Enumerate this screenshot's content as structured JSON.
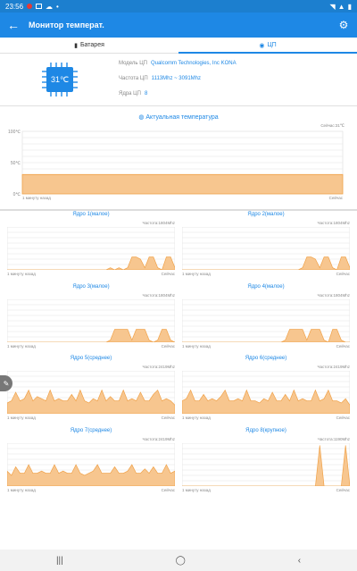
{
  "status_bar": {
    "time": "23:56"
  },
  "app_bar": {
    "title": "Монитор температ."
  },
  "tabs": [
    {
      "label": "Батарея",
      "icon": "battery-icon"
    },
    {
      "label": "ЦП",
      "icon": "cpu-icon"
    }
  ],
  "cpu": {
    "chip_temp": "31℃",
    "model_label": "Модель ЦП",
    "model_value": "Qualcomm Technologies, Inc KONA",
    "freq_label": "Частота ЦП",
    "freq_value": "1113Mhz ~ 3091Mhz",
    "cores_label": "Ядра ЦП",
    "cores_value": "8"
  },
  "temp_chart": {
    "title": "Актуальная температура",
    "now": "Сейчас:31℃",
    "start_label": "1 минуту назад",
    "end_label": "Сейчас"
  },
  "cores": [
    {
      "title": "Ядро 1(малое)",
      "freq": "Частота:1804Mhz"
    },
    {
      "title": "Ядро 2(малое)",
      "freq": "Частота:1804Mhz"
    },
    {
      "title": "Ядро 3(малое)",
      "freq": "Частота:1804Mhz"
    },
    {
      "title": "Ядро 4(малое)",
      "freq": "Частота:1804Mhz"
    },
    {
      "title": "Ядро 5(среднее)",
      "freq": "Частота:2419Mhz"
    },
    {
      "title": "Ядро 6(среднее)",
      "freq": "Частота:2419Mhz"
    },
    {
      "title": "Ядро 7(среднее)",
      "freq": "Частота:2419Mhz"
    },
    {
      "title": "Ядро 8(крупное)",
      "freq": "Частота:1190Mhz"
    }
  ],
  "core_axis": {
    "start_label": "1 минуту назад",
    "end_label": "Сейчас"
  },
  "chart_data": [
    {
      "type": "area",
      "title": "Актуальная температура",
      "yticks": [
        "100℃",
        "50℃",
        "0℃"
      ],
      "ylim": [
        0,
        100
      ],
      "x": [
        0,
        60
      ],
      "values": [
        31,
        31
      ]
    }
  ],
  "colors": {
    "accent": "#1e88e5",
    "fill": "#f7c68f",
    "stroke": "#f0a24a"
  }
}
